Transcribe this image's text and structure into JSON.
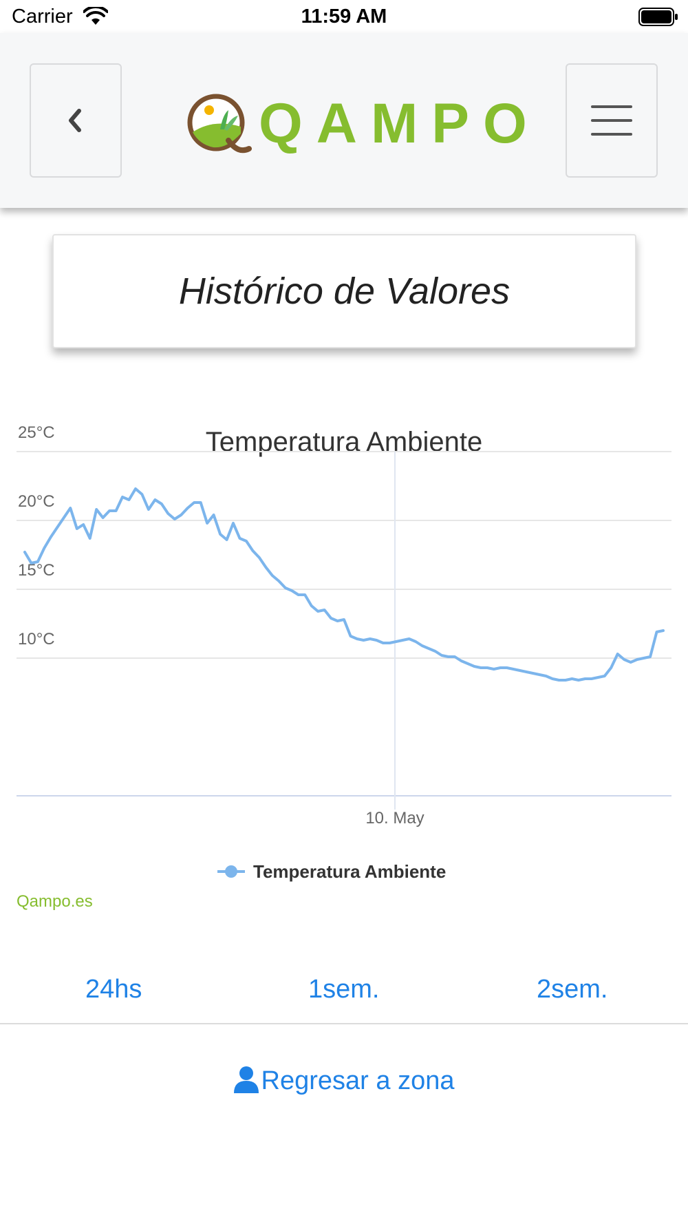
{
  "status_bar": {
    "carrier": "Carrier",
    "time": "11:59 AM"
  },
  "header": {
    "logo_text": "QAMPO",
    "back_icon": "chevron-left-icon",
    "menu_icon": "hamburger-icon"
  },
  "page_title": "Histórico de Valores",
  "chart_data": {
    "type": "line",
    "title": "Temperatura Ambiente",
    "xlabel": "",
    "ylabel": "",
    "ylim": [
      0,
      25
    ],
    "y_ticks": [
      "25°C",
      "20°C",
      "15°C",
      "10°C"
    ],
    "x_ticks": [
      "10. May"
    ],
    "legend": "bottom-center",
    "series": [
      {
        "name": "Temperatura Ambiente",
        "color": "#7cb5ec",
        "values": [
          17.7,
          16.9,
          17.0,
          18.0,
          18.8,
          19.5,
          20.2,
          20.9,
          19.4,
          19.7,
          18.7,
          20.8,
          20.2,
          20.7,
          20.7,
          21.7,
          21.5,
          22.3,
          21.9,
          20.8,
          21.5,
          21.2,
          20.5,
          20.1,
          20.4,
          20.9,
          21.3,
          21.3,
          19.8,
          20.4,
          19.0,
          18.6,
          19.8,
          18.7,
          18.5,
          17.8,
          17.3,
          16.6,
          16.0,
          15.6,
          15.1,
          14.9,
          14.6,
          14.6,
          13.8,
          13.4,
          13.5,
          12.9,
          12.7,
          12.8,
          11.6,
          11.4,
          11.3,
          11.4,
          11.3,
          11.1,
          11.1,
          11.2,
          11.3,
          11.4,
          11.2,
          10.9,
          10.7,
          10.5,
          10.2,
          10.1,
          10.1,
          9.8,
          9.6,
          9.4,
          9.3,
          9.3,
          9.2,
          9.3,
          9.3,
          9.2,
          9.1,
          9.0,
          8.9,
          8.8,
          8.7,
          8.5,
          8.4,
          8.4,
          8.5,
          8.4,
          8.5,
          8.5,
          8.6,
          8.7,
          9.3,
          10.3,
          9.9,
          9.7,
          9.9,
          10.0,
          10.1,
          11.9,
          12.0
        ]
      }
    ]
  },
  "credit": "Qampo.es",
  "period_tabs": [
    "24hs",
    "1sem.",
    "2sem."
  ],
  "back_to_zone": "Regresar a zona",
  "colors": {
    "brand_green": "#86bd2f",
    "link_blue": "#1f82e6",
    "series": "#7cb5ec"
  }
}
